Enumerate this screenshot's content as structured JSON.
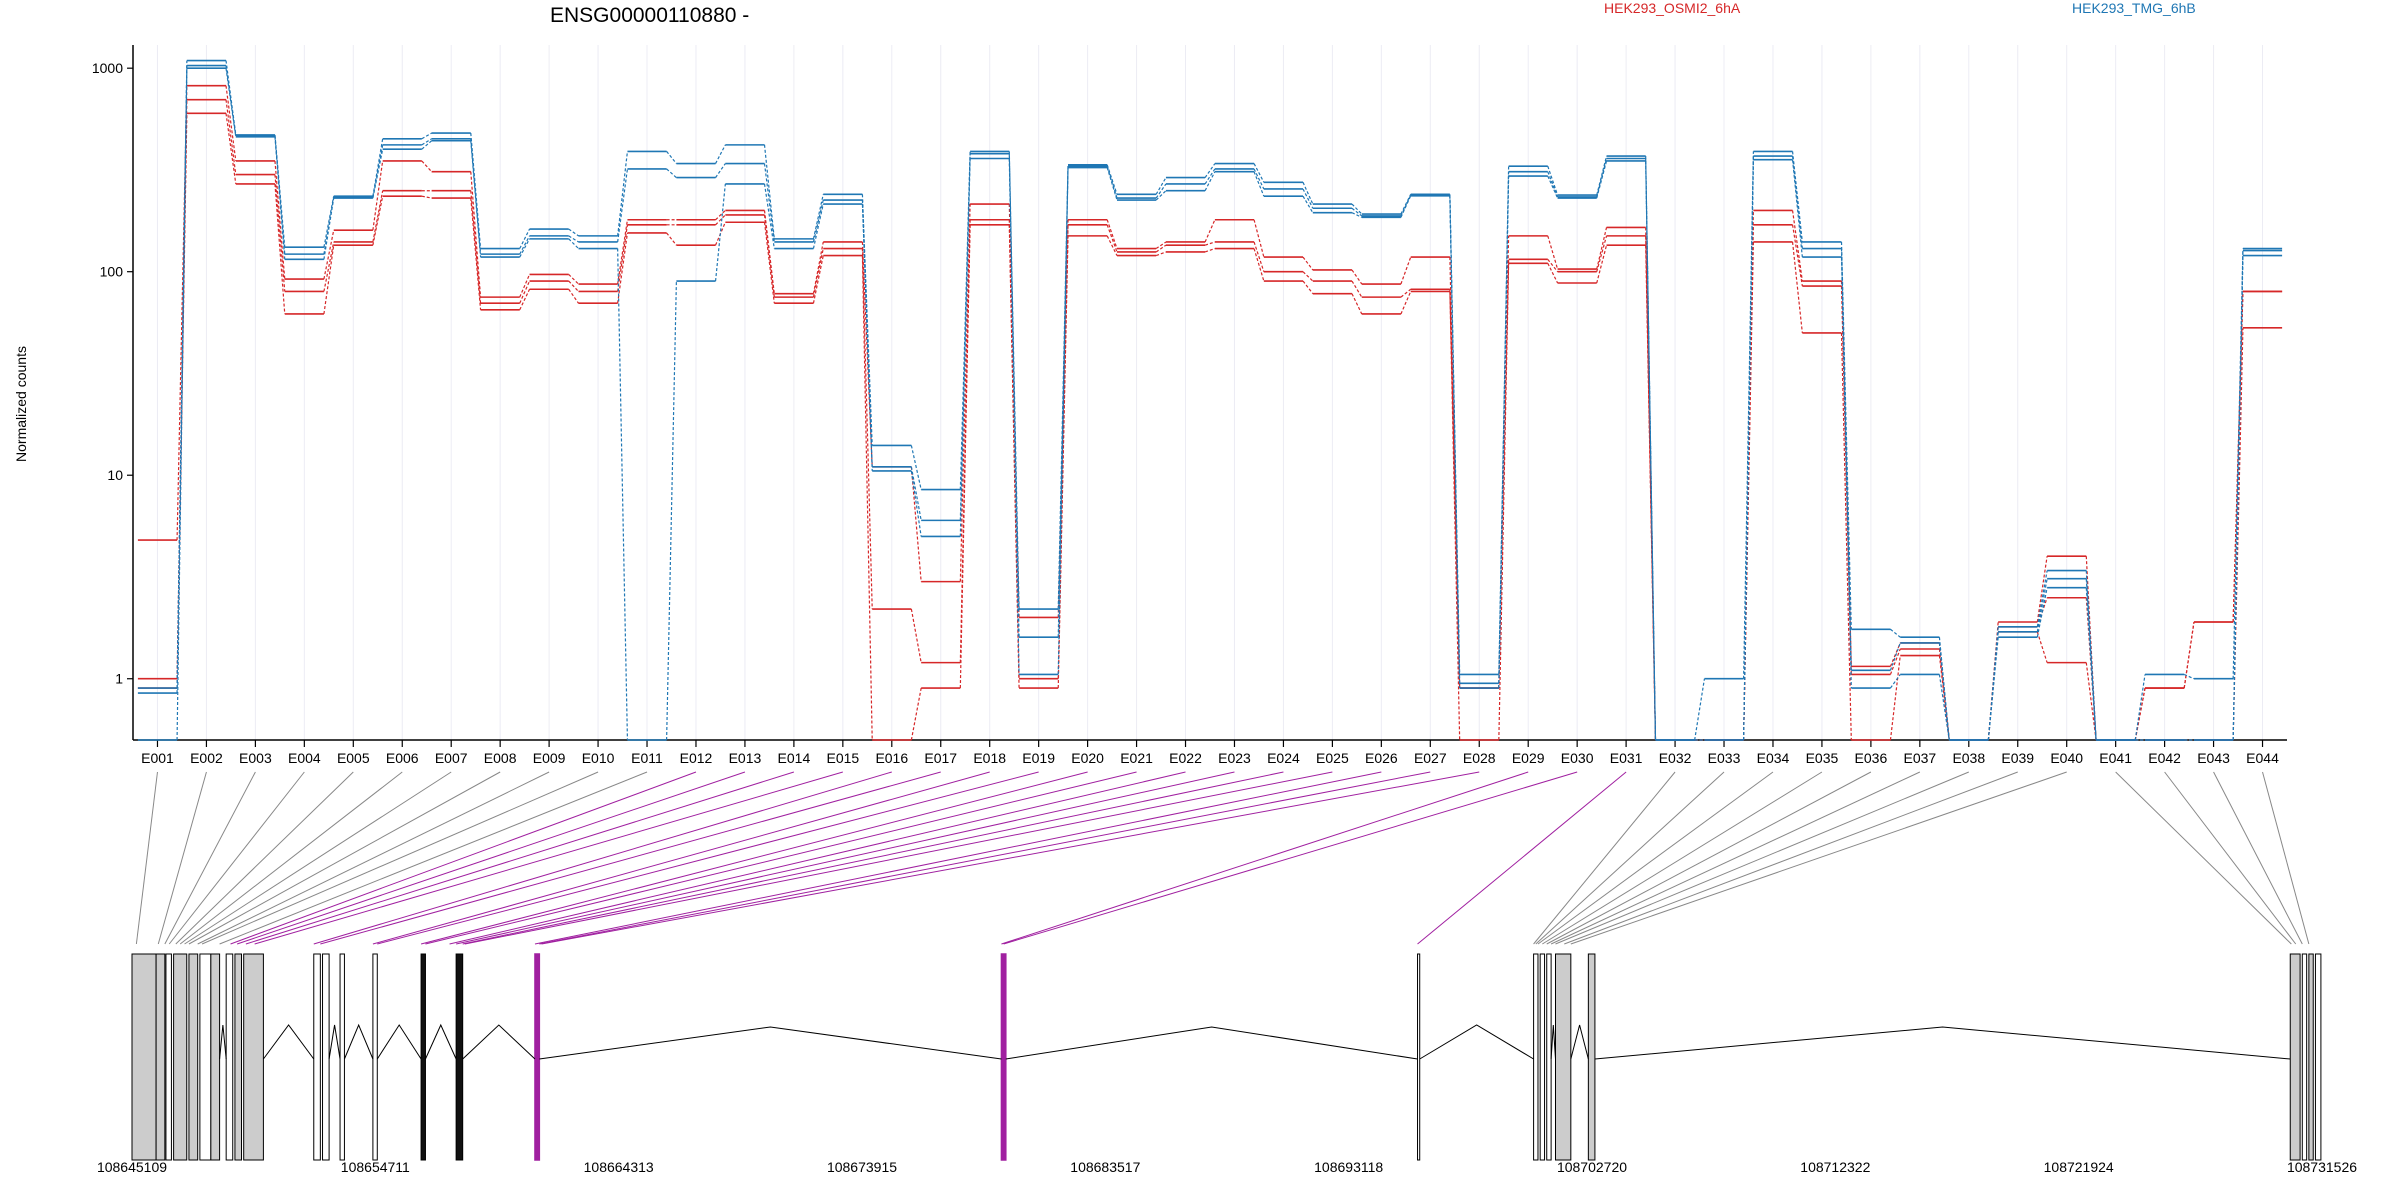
{
  "chart_data": [
    {
      "type": "line",
      "title": "ENSG00000110880 -",
      "xlabel": "",
      "ylabel": "Normalized counts",
      "yscale": "log",
      "ylim": [
        0.5,
        1300
      ],
      "yticks": [
        "1",
        "10",
        "100",
        "1000"
      ],
      "categories": [
        "E001",
        "E002",
        "E003",
        "E004",
        "E005",
        "E006",
        "E007",
        "E008",
        "E009",
        "E010",
        "E011",
        "E012",
        "E013",
        "E014",
        "E015",
        "E016",
        "E017",
        "E018",
        "E019",
        "E020",
        "E021",
        "E022",
        "E023",
        "E024",
        "E025",
        "E026",
        "E027",
        "E028",
        "E029",
        "E030",
        "E031",
        "E032",
        "E033",
        "E034",
        "E035",
        "E036",
        "E037",
        "E038",
        "E039",
        "E040",
        "E041",
        "E042",
        "E043",
        "E044"
      ],
      "legend_placement": "top",
      "colors": {
        "HEK293_OSMI2_6hA": "#d62728",
        "HEK293_TMG_6hB": "#1f77b4"
      },
      "series": [
        {
          "name": "HEK293_OSMI2_6hA",
          "color": "#d62728",
          "values": [
            4.8,
            820,
            350,
            92,
            160,
            350,
            310,
            75,
            97,
            87,
            180,
            180,
            200,
            78,
            140,
            11,
            3,
            215,
            2,
            180,
            130,
            140,
            180,
            118,
            102,
            87,
            118,
            0.9,
            150,
            103,
            165,
            0.5,
            0.5,
            200,
            90,
            1.15,
            1.5,
            0.5,
            1.9,
            4.0,
            0.5,
            0.9,
            1.9,
            80
          ]
        },
        {
          "values": [
            1.0,
            700,
            300,
            80,
            140,
            250,
            250,
            70,
            90,
            80,
            170,
            170,
            190,
            75,
            130,
            2.2,
            1.2,
            180,
            1.0,
            170,
            125,
            135,
            140,
            100,
            90,
            75,
            82,
            0.9,
            115,
            100,
            150,
            0.5,
            0.5,
            170,
            85,
            1.05,
            1.4,
            0.5,
            1.8,
            2.5,
            0.5,
            0.9,
            1.9,
            80
          ]
        },
        {
          "values": [
            0.9,
            600,
            270,
            62,
            135,
            235,
            230,
            65,
            82,
            70,
            155,
            135,
            175,
            70,
            120,
            0.5,
            0.9,
            170,
            0.9,
            150,
            120,
            125,
            130,
            90,
            78,
            62,
            80,
            0.5,
            110,
            88,
            135,
            0.5,
            0.5,
            140,
            50,
            0.5,
            1.3,
            0.5,
            1.7,
            1.2,
            0.5,
            0.5,
            0.5,
            53
          ]
        },
        {
          "name": "HEK293_TMG_6hB",
          "color": "#1f77b4",
          "values": [
            0.9,
            1090,
            470,
            132,
            235,
            450,
            480,
            130,
            162,
            150,
            390,
            340,
            420,
            145,
            240,
            14,
            8.5,
            390,
            2.2,
            335,
            240,
            290,
            340,
            275,
            215,
            192,
            240,
            1.05,
            330,
            238,
            370,
            0.5,
            1.0,
            390,
            140,
            1.75,
            1.6,
            0.5,
            1.8,
            3.4,
            0.5,
            1.05,
            1.0,
            130
          ]
        },
        {
          "values": [
            0.85,
            1030,
            465,
            122,
            232,
            420,
            450,
            122,
            150,
            140,
            320,
            290,
            340,
            140,
            225,
            11,
            6,
            380,
            1.6,
            330,
            230,
            270,
            320,
            255,
            205,
            188,
            238,
            0.95,
            310,
            233,
            360,
            0.5,
            0.5,
            370,
            130,
            1.1,
            1.5,
            0.5,
            1.7,
            3.1,
            0.5,
            0.5,
            0.5,
            127
          ]
        },
        {
          "values": [
            0.5,
            1000,
            460,
            115,
            230,
            400,
            440,
            118,
            145,
            130,
            0.5,
            90,
            270,
            130,
            215,
            10.5,
            5,
            360,
            1.05,
            325,
            225,
            250,
            310,
            235,
            195,
            185,
            236,
            0.9,
            295,
            230,
            350,
            0.5,
            0.5,
            355,
            118,
            0.9,
            1.05,
            0.5,
            1.6,
            2.8,
            0.5,
            0.5,
            0.5,
            120
          ]
        }
      ]
    },
    {
      "type": "gene-model",
      "coordinate_ticks": [
        "108645109",
        "108654711",
        "108664313",
        "108673915",
        "108683517",
        "108693118",
        "108702720",
        "108712322",
        "108721924",
        "108731526"
      ],
      "highlight_color": "#a020a0",
      "highlighted_exons": [
        "E012",
        "E013",
        "E014",
        "E015",
        "E016",
        "E017",
        "E018",
        "E019",
        "E020",
        "E021",
        "E022",
        "E023",
        "E024",
        "E025",
        "E026",
        "E027",
        "E028",
        "E029",
        "E030",
        "E031"
      ]
    }
  ]
}
